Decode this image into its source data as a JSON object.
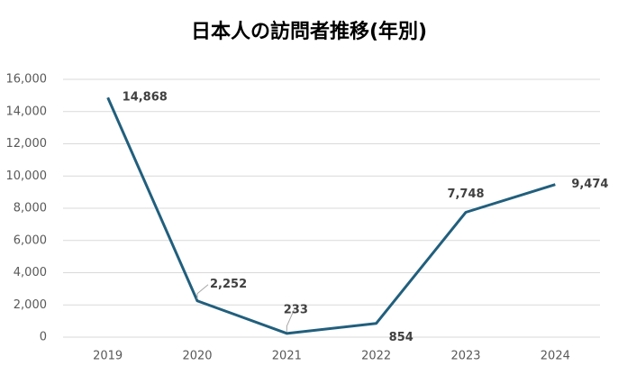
{
  "chart_data": {
    "type": "line",
    "title": "日本人の訪問者推移(年別)",
    "categories": [
      "2019",
      "2020",
      "2021",
      "2022",
      "2023",
      "2024"
    ],
    "series": [
      {
        "color": "#215f7d",
        "values": [
          14868,
          2252,
          233,
          854,
          7748,
          9474
        ],
        "value_labels": [
          "14,868",
          "2,252",
          "233",
          "854",
          "7,748",
          "9,474"
        ]
      }
    ],
    "ylim": [
      0,
      16000
    ],
    "yticks": [
      0,
      {
        "value": 2000,
        "label": "2,000"
      },
      {
        "value": 4000,
        "label": "4,000"
      },
      {
        "value": 6000,
        "label": "6,000"
      },
      {
        "value": 8000,
        "label": "8,000"
      },
      {
        "value": 10000,
        "label": "10,000"
      },
      {
        "value": 12000,
        "label": "12,000"
      },
      {
        "value": 14000,
        "label": "14,000"
      },
      {
        "value": 16000,
        "label": "16,000"
      }
    ],
    "grid": true
  }
}
